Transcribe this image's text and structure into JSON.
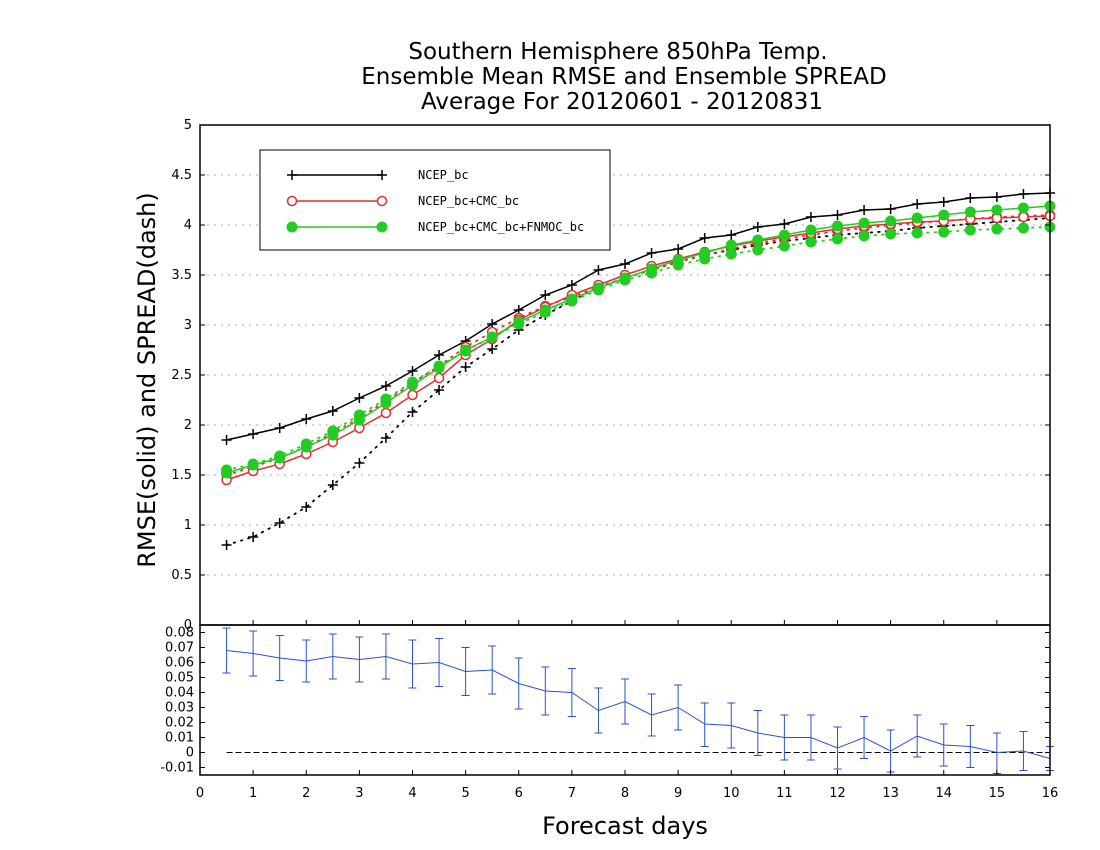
{
  "title_lines": [
    "Southern Hemisphere 850hPa Temp.",
    "Ensemble Mean RMSE and Ensemble SPREAD",
    "Average For 20120601 - 20120831"
  ],
  "chart_data": [
    {
      "type": "line",
      "xlabel": "Forecast days",
      "ylabel": "RMSE(solid) and SPREAD(dash)",
      "xlim": [
        0,
        16
      ],
      "ylim": [
        0,
        5
      ],
      "x_ticks": [
        "0",
        "1",
        "2",
        "3",
        "4",
        "5",
        "6",
        "7",
        "8",
        "9",
        "10",
        "11",
        "12",
        "13",
        "14",
        "15",
        "16"
      ],
      "y_ticks": [
        "0",
        "0.5",
        "1",
        "1.5",
        "2",
        "2.5",
        "3",
        "3.5",
        "4",
        "4.5",
        "5"
      ],
      "grid": "horizontal dotted",
      "legend_position": "top-left",
      "x": [
        0.5,
        1,
        1.5,
        2,
        2.5,
        3,
        3.5,
        4,
        4.5,
        5,
        5.5,
        6,
        6.5,
        7,
        7.5,
        8,
        8.5,
        9,
        9.5,
        10,
        10.5,
        11,
        11.5,
        12,
        12.5,
        13,
        13.5,
        14,
        14.5,
        15,
        15.5,
        16
      ],
      "series": [
        {
          "name": "NCEP_bc",
          "color": "#000000",
          "marker": "plus",
          "rmse": [
            1.85,
            1.91,
            1.97,
            2.06,
            2.14,
            2.27,
            2.39,
            2.54,
            2.7,
            2.84,
            3.01,
            3.15,
            3.3,
            3.4,
            3.55,
            3.61,
            3.72,
            3.76,
            3.87,
            3.9,
            3.98,
            4.01,
            4.08,
            4.1,
            4.15,
            4.16,
            4.21,
            4.23,
            4.27,
            4.28,
            4.31,
            4.32
          ],
          "spread": [
            0.8,
            0.88,
            1.02,
            1.18,
            1.4,
            1.62,
            1.87,
            2.13,
            2.35,
            2.58,
            2.76,
            2.95,
            3.1,
            3.24,
            3.38,
            3.47,
            3.55,
            3.63,
            3.7,
            3.75,
            3.8,
            3.84,
            3.87,
            3.9,
            3.92,
            3.94,
            3.97,
            3.99,
            4.01,
            4.03,
            4.05,
            4.07
          ]
        },
        {
          "name": "NCEP_bc+CMC_bc",
          "color": "#e03030",
          "marker": "open-circle",
          "rmse": [
            1.45,
            1.54,
            1.61,
            1.71,
            1.83,
            1.97,
            2.12,
            2.3,
            2.47,
            2.7,
            2.86,
            3.05,
            3.18,
            3.3,
            3.4,
            3.5,
            3.59,
            3.66,
            3.73,
            3.79,
            3.84,
            3.88,
            3.92,
            3.96,
            3.99,
            4.01,
            4.03,
            4.04,
            4.06,
            4.07,
            4.08,
            4.09
          ],
          "spread": [
            1.5,
            1.58,
            1.67,
            1.78,
            1.92,
            2.07,
            2.24,
            2.42,
            2.59,
            2.78,
            2.93,
            3.07,
            3.19,
            3.28,
            3.38,
            3.47,
            3.55,
            3.63,
            3.7,
            3.76,
            3.82,
            3.86,
            3.9,
            3.94,
            3.97,
            4.0,
            4.02,
            4.04,
            4.06,
            4.08,
            4.09,
            4.1
          ]
        },
        {
          "name": "NCEP_bc+CMC_bc+FNMOC_bc",
          "color": "#22cc22",
          "marker": "filled-circle",
          "rmse": [
            1.52,
            1.6,
            1.67,
            1.78,
            1.9,
            2.05,
            2.22,
            2.4,
            2.57,
            2.75,
            2.88,
            3.03,
            3.15,
            3.26,
            3.37,
            3.47,
            3.56,
            3.65,
            3.72,
            3.8,
            3.85,
            3.9,
            3.95,
            3.99,
            4.02,
            4.04,
            4.07,
            4.1,
            4.13,
            4.15,
            4.17,
            4.19
          ],
          "spread": [
            1.55,
            1.61,
            1.69,
            1.81,
            1.94,
            2.1,
            2.26,
            2.43,
            2.59,
            2.74,
            2.88,
            3.01,
            3.13,
            3.24,
            3.35,
            3.45,
            3.52,
            3.6,
            3.66,
            3.71,
            3.75,
            3.79,
            3.83,
            3.86,
            3.89,
            3.91,
            3.92,
            3.93,
            3.95,
            3.96,
            3.97,
            3.98
          ]
        }
      ]
    },
    {
      "type": "line",
      "xlim": [
        0,
        16
      ],
      "ylim": [
        -0.015,
        0.085
      ],
      "y_ticks": [
        "-0.01",
        "0",
        "0.01",
        "0.02",
        "0.03",
        "0.04",
        "0.05",
        "0.06",
        "0.07",
        "0.08"
      ],
      "color": "#2a52d0",
      "x": [
        0.5,
        1,
        1.5,
        2,
        2.5,
        3,
        3.5,
        4,
        4.5,
        5,
        5.5,
        6,
        6.5,
        7,
        7.5,
        8,
        8.5,
        9,
        9.5,
        10,
        10.5,
        11,
        11.5,
        12,
        12.5,
        13,
        13.5,
        14,
        14.5,
        15,
        15.5,
        16
      ],
      "values": [
        0.068,
        0.066,
        0.063,
        0.061,
        0.064,
        0.062,
        0.064,
        0.059,
        0.06,
        0.054,
        0.055,
        0.046,
        0.041,
        0.04,
        0.028,
        0.034,
        0.025,
        0.03,
        0.019,
        0.018,
        0.013,
        0.01,
        0.01,
        0.003,
        0.01,
        0.001,
        0.011,
        0.005,
        0.004,
        0.0,
        0.001,
        -0.004
      ],
      "error_low": [
        0.053,
        0.051,
        0.048,
        0.047,
        0.049,
        0.047,
        0.049,
        0.043,
        0.044,
        0.038,
        0.039,
        0.029,
        0.025,
        0.024,
        0.013,
        0.019,
        0.011,
        0.015,
        0.004,
        0.003,
        -0.002,
        -0.005,
        -0.005,
        -0.011,
        -0.004,
        -0.013,
        -0.003,
        -0.009,
        -0.01,
        -0.014,
        -0.012,
        -0.012
      ],
      "error_high": [
        0.083,
        0.081,
        0.078,
        0.075,
        0.079,
        0.077,
        0.079,
        0.075,
        0.076,
        0.07,
        0.071,
        0.063,
        0.057,
        0.056,
        0.043,
        0.049,
        0.039,
        0.045,
        0.033,
        0.033,
        0.028,
        0.025,
        0.025,
        0.017,
        0.024,
        0.015,
        0.025,
        0.019,
        0.018,
        0.013,
        0.014,
        0.004
      ]
    }
  ]
}
